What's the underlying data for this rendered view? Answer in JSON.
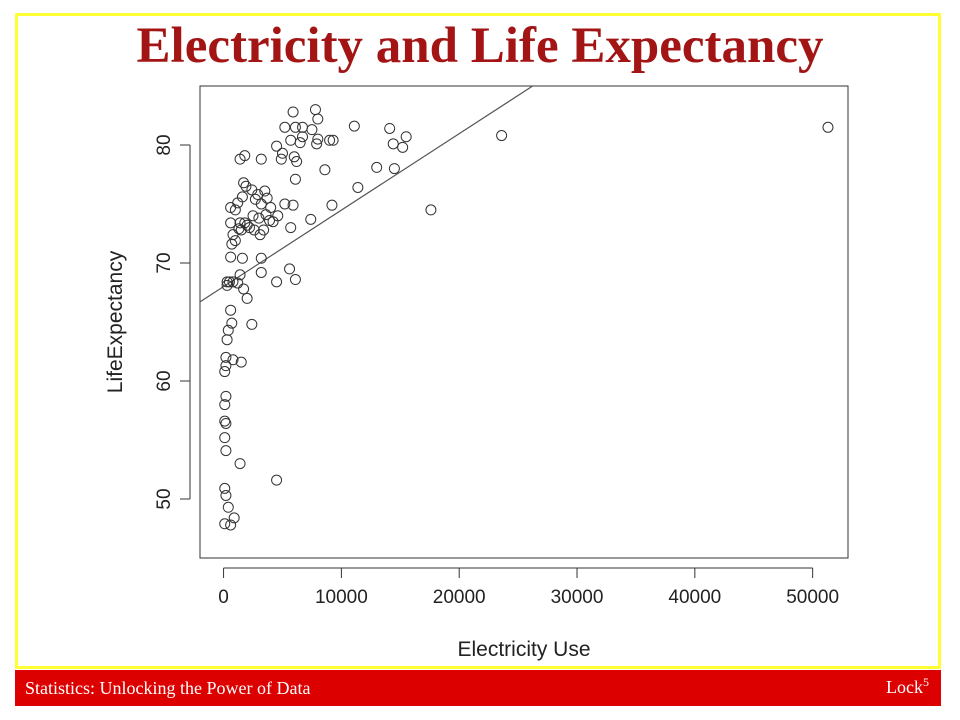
{
  "slide": {
    "title": "Electricity and Life Expectancy",
    "footer_left": "Statistics: Unlocking the Power of Data",
    "footer_right_base": "Lock",
    "footer_right_sup": "5",
    "colors": {
      "title": "#a31515",
      "footer_bg": "#dd0000",
      "frame": "#ffff33"
    }
  },
  "chart_data": {
    "type": "scatter",
    "xlabel": "Electricity Use",
    "ylabel": "LifeExpectancy",
    "xlim": [
      -2000,
      53000
    ],
    "ylim": [
      45,
      85
    ],
    "xticks": [
      0,
      10000,
      20000,
      30000,
      40000,
      50000
    ],
    "yticks": [
      50,
      60,
      70,
      80
    ],
    "regression_line": {
      "intercept": 68.0,
      "slope": 0.000648
    },
    "points": [
      [
        5900,
        82.8
      ],
      [
        7800,
        83.0
      ],
      [
        8000,
        82.2
      ],
      [
        5200,
        81.5
      ],
      [
        6100,
        81.5
      ],
      [
        6700,
        81.5
      ],
      [
        7500,
        81.3
      ],
      [
        11100,
        81.6
      ],
      [
        14100,
        81.4
      ],
      [
        6700,
        80.7
      ],
      [
        8000,
        80.5
      ],
      [
        5700,
        80.4
      ],
      [
        6500,
        80.2
      ],
      [
        7900,
        80.1
      ],
      [
        9000,
        80.4
      ],
      [
        9300,
        80.4
      ],
      [
        14400,
        80.1
      ],
      [
        15200,
        79.8
      ],
      [
        15500,
        80.7
      ],
      [
        23600,
        80.8
      ],
      [
        51300,
        81.5
      ],
      [
        4500,
        79.9
      ],
      [
        5000,
        79.3
      ],
      [
        6000,
        79.0
      ],
      [
        6200,
        78.6
      ],
      [
        4900,
        78.8
      ],
      [
        3200,
        78.8
      ],
      [
        1800,
        79.1
      ],
      [
        1400,
        78.8
      ],
      [
        13000,
        78.1
      ],
      [
        14500,
        78.0
      ],
      [
        8600,
        77.9
      ],
      [
        6100,
        77.1
      ],
      [
        1700,
        76.8
      ],
      [
        1900,
        76.5
      ],
      [
        2400,
        76.2
      ],
      [
        3500,
        76.1
      ],
      [
        2900,
        75.8
      ],
      [
        1600,
        75.6
      ],
      [
        1200,
        75.1
      ],
      [
        3700,
        75.5
      ],
      [
        3200,
        75.0
      ],
      [
        2700,
        75.4
      ],
      [
        11400,
        76.4
      ],
      [
        9200,
        74.9
      ],
      [
        4000,
        74.7
      ],
      [
        600,
        74.7
      ],
      [
        1000,
        74.5
      ],
      [
        2500,
        74.0
      ],
      [
        3000,
        73.8
      ],
      [
        3600,
        74.1
      ],
      [
        3900,
        73.6
      ],
      [
        4200,
        73.5
      ],
      [
        4600,
        74.0
      ],
      [
        5200,
        75.0
      ],
      [
        5900,
        74.9
      ],
      [
        7400,
        73.7
      ],
      [
        17600,
        74.5
      ],
      [
        600,
        73.4
      ],
      [
        1400,
        73.4
      ],
      [
        1800,
        73.4
      ],
      [
        2000,
        73.2
      ],
      [
        2200,
        73.0
      ],
      [
        1500,
        72.8
      ],
      [
        1300,
        72.9
      ],
      [
        2600,
        72.8
      ],
      [
        3100,
        72.4
      ],
      [
        3400,
        72.8
      ],
      [
        5700,
        73.0
      ],
      [
        800,
        72.4
      ],
      [
        1000,
        71.9
      ],
      [
        700,
        71.6
      ],
      [
        600,
        70.5
      ],
      [
        1600,
        70.4
      ],
      [
        3200,
        70.4
      ],
      [
        3200,
        69.2
      ],
      [
        5600,
        69.5
      ],
      [
        6100,
        68.6
      ],
      [
        4500,
        68.4
      ],
      [
        1400,
        69.0
      ],
      [
        800,
        68.4
      ],
      [
        500,
        68.4
      ],
      [
        300,
        68.1
      ],
      [
        1200,
        68.3
      ],
      [
        1700,
        67.8
      ],
      [
        2000,
        67.0
      ],
      [
        300,
        68.4
      ],
      [
        600,
        66.0
      ],
      [
        700,
        64.9
      ],
      [
        400,
        64.3
      ],
      [
        2400,
        64.8
      ],
      [
        300,
        63.5
      ],
      [
        200,
        62.0
      ],
      [
        200,
        61.3
      ],
      [
        800,
        61.8
      ],
      [
        1500,
        61.6
      ],
      [
        100,
        60.8
      ],
      [
        200,
        58.7
      ],
      [
        100,
        58.0
      ],
      [
        100,
        56.6
      ],
      [
        200,
        56.4
      ],
      [
        100,
        55.2
      ],
      [
        200,
        54.1
      ],
      [
        1400,
        53.0
      ],
      [
        4500,
        51.6
      ],
      [
        100,
        50.9
      ],
      [
        200,
        50.3
      ],
      [
        400,
        49.3
      ],
      [
        100,
        47.9
      ],
      [
        600,
        47.8
      ],
      [
        900,
        48.4
      ]
    ]
  }
}
